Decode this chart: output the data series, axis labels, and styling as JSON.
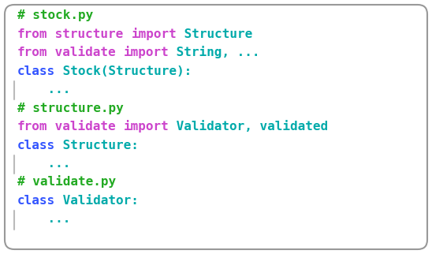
{
  "bg_color": "#ffffff",
  "border_color": "#999999",
  "font_size": 11.5,
  "lines": [
    [
      {
        "text": "# stock.py",
        "color": "#22aa22"
      }
    ],
    [
      {
        "text": "from",
        "color": "#cc44cc"
      },
      {
        "text": " structure ",
        "color": "#cc44cc"
      },
      {
        "text": "import",
        "color": "#cc44cc"
      },
      {
        "text": " Structure",
        "color": "#00aaaa"
      }
    ],
    [
      {
        "text": "from",
        "color": "#cc44cc"
      },
      {
        "text": " validate ",
        "color": "#cc44cc"
      },
      {
        "text": "import",
        "color": "#cc44cc"
      },
      {
        "text": " String, ...",
        "color": "#00aaaa"
      }
    ],
    [
      {
        "text": "class",
        "color": "#3355ff"
      },
      {
        "text": " Stock(Structure):",
        "color": "#00aaaa"
      }
    ],
    [
      {
        "text": "    ...",
        "color": "#00aaaa",
        "indent_bar": true
      }
    ],
    [
      {
        "text": "# structure.py",
        "color": "#22aa22"
      }
    ],
    [
      {
        "text": "from",
        "color": "#cc44cc"
      },
      {
        "text": " validate ",
        "color": "#cc44cc"
      },
      {
        "text": "import",
        "color": "#cc44cc"
      },
      {
        "text": " Validator, validated",
        "color": "#00aaaa"
      }
    ],
    [
      {
        "text": "class",
        "color": "#3355ff"
      },
      {
        "text": " Structure:",
        "color": "#00aaaa"
      }
    ],
    [
      {
        "text": "    ...",
        "color": "#00aaaa",
        "indent_bar": true
      }
    ],
    [
      {
        "text": "# validate.py",
        "color": "#22aa22"
      }
    ],
    [
      {
        "text": "class",
        "color": "#3355ff"
      },
      {
        "text": " Validator:",
        "color": "#00aaaa"
      }
    ],
    [
      {
        "text": "    ...",
        "color": "#00aaaa",
        "indent_bar": true
      }
    ]
  ],
  "line_colors_full": [
    {
      "full": "# stock.py",
      "colors": [
        "green"
      ]
    },
    {
      "full": "from structure import Structure",
      "colors": [
        "magenta",
        "magenta",
        "magenta",
        "cyan"
      ]
    },
    {
      "full": "from validate import String, ...",
      "colors": [
        "magenta",
        "magenta",
        "magenta",
        "cyan"
      ]
    },
    {
      "full": "class Stock(Structure):",
      "colors": [
        "blue",
        "cyan"
      ]
    },
    {
      "full": "    ...",
      "colors": [
        "cyan"
      ],
      "bar": true
    },
    {
      "full": "# structure.py",
      "colors": [
        "green"
      ]
    },
    {
      "full": "from validate import Validator, validated",
      "colors": [
        "magenta",
        "magenta",
        "magenta",
        "cyan"
      ]
    },
    {
      "full": "class Structure:",
      "colors": [
        "blue",
        "cyan"
      ]
    },
    {
      "full": "    ...",
      "colors": [
        "cyan"
      ],
      "bar": true
    },
    {
      "full": "# validate.py",
      "colors": [
        "green"
      ]
    },
    {
      "full": "class Validator:",
      "colors": [
        "blue",
        "cyan"
      ]
    },
    {
      "full": "    ...",
      "colors": [
        "cyan"
      ],
      "bar": true
    }
  ]
}
